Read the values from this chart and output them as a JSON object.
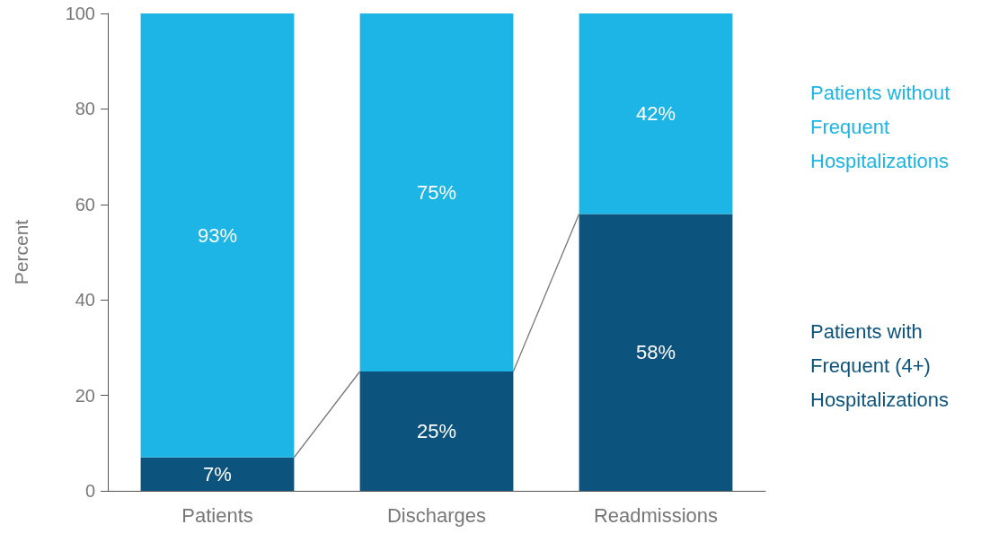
{
  "chart_data": {
    "type": "bar",
    "stacked": true,
    "ylabel": "Percent",
    "categories": [
      "Patients",
      "Discharges",
      "Readmissions"
    ],
    "series": [
      {
        "name": "Patients with Frequent (4+) Hospitalizations",
        "color": "#0c537e",
        "values": [
          7,
          25,
          58
        ],
        "value_labels": [
          "7%",
          "25%",
          "58%"
        ]
      },
      {
        "name": "Patients without Frequent Hospitalizations",
        "color": "#1cb5e5",
        "values": [
          93,
          75,
          42
        ],
        "value_labels": [
          "93%",
          "75%",
          "42%"
        ]
      }
    ],
    "ylim": [
      0,
      100
    ],
    "yticks": [
      0,
      20,
      40,
      60,
      80,
      100
    ],
    "grid": false,
    "legend": "right"
  }
}
